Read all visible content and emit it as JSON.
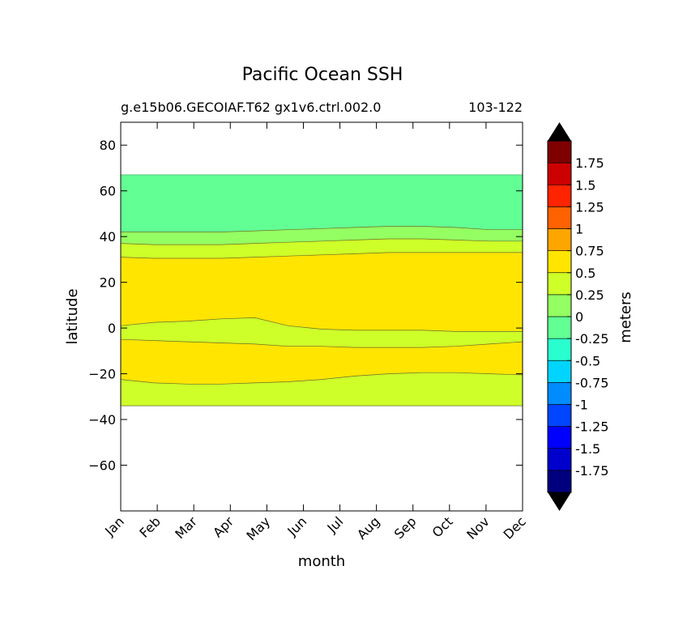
{
  "chart_data": {
    "type": "heatmap",
    "title": "Pacific Ocean SSH",
    "subtitle_left": "g.e15b06.GECOIAF.T62 gx1v6.ctrl.002.0",
    "subtitle_right": "103-122",
    "xlabel": "month",
    "ylabel": "latitude",
    "colorbar_label": "meters",
    "x_categories": [
      "Jan",
      "Feb",
      "Mar",
      "Apr",
      "May",
      "Jun",
      "Jul",
      "Aug",
      "Sep",
      "Oct",
      "Nov",
      "Dec"
    ],
    "ylim": [
      -80,
      90
    ],
    "y_ticks": [
      80,
      60,
      40,
      20,
      0,
      -20,
      -40,
      -60
    ],
    "y_tick_labels": [
      "80",
      "60",
      "40",
      "20",
      "0",
      "−20",
      "−40",
      "−60"
    ],
    "valid_lat_range": [
      -34,
      67
    ],
    "levels": [
      -2,
      -1.75,
      -1.5,
      -1.25,
      -1,
      -0.75,
      -0.5,
      -0.25,
      0,
      0.25,
      0.5,
      0.75,
      1,
      1.25,
      1.5,
      1.75,
      2
    ],
    "colorbar_tick_labels": [
      "1.75",
      "1.5",
      "1.25",
      "1",
      "0.75",
      "0.5",
      "0.25",
      "0",
      "-0.25",
      "-0.5",
      "-0.75",
      "-1",
      "-1.25",
      "-1.5",
      "-1.75"
    ],
    "colorbar_ticks": [
      1.75,
      1.5,
      1.25,
      1,
      0.75,
      0.5,
      0.25,
      0,
      -0.25,
      -0.5,
      -0.75,
      -1,
      -1.25,
      -1.5,
      -1.75
    ],
    "level_colors": [
      "#00007f",
      "#0000cd",
      "#0000ff",
      "#0046ff",
      "#008cff",
      "#00d4ff",
      "#29ffce",
      "#62ff94",
      "#94ff62",
      "#ceff29",
      "#ffe500",
      "#ffa500",
      "#ff6200",
      "#ff2400",
      "#cd0000",
      "#7f0000"
    ],
    "extend_low_color": "#000000",
    "extend_high_color": "#000000",
    "bands": [
      {
        "level_range": [
          -0.25,
          0
        ],
        "color": "#62ff94",
        "lower": [
          42,
          42,
          42,
          42,
          42.5,
          43,
          43.5,
          44,
          44.5,
          44.5,
          44,
          43,
          43
        ],
        "upper": [
          67,
          67,
          67,
          67,
          67,
          67,
          67,
          67,
          67,
          67,
          67,
          67,
          67
        ]
      },
      {
        "level_range": [
          0,
          0.25
        ],
        "color": "#94ff62",
        "lower": [
          37,
          36.5,
          36.5,
          36.5,
          37,
          37.5,
          38,
          38.5,
          39,
          39,
          38.5,
          38,
          38
        ],
        "upper": [
          42,
          42,
          42,
          42,
          42.5,
          43,
          43.5,
          44,
          44.5,
          44.5,
          44,
          43,
          43
        ]
      },
      {
        "level_range": [
          0.25,
          0.5
        ],
        "color": "#ceff29",
        "lower": [
          31,
          30.5,
          30.5,
          30.5,
          31,
          31.5,
          32,
          32.5,
          33,
          33,
          33,
          33,
          33
        ],
        "upper": [
          37,
          36.5,
          36.5,
          36.5,
          37,
          37.5,
          38,
          38.5,
          39,
          39,
          38.5,
          38,
          38
        ]
      },
      {
        "level_range": [
          0.5,
          0.75
        ],
        "color": "#ffe500",
        "lower": [
          1,
          2.5,
          3,
          4,
          4.5,
          1,
          -0.5,
          -1,
          -1,
          -1,
          -1.5,
          -1.5,
          -1.5
        ],
        "upper": [
          31,
          30.5,
          30.5,
          30.5,
          31,
          31.5,
          32,
          32.5,
          33,
          33,
          33,
          33,
          33
        ]
      },
      {
        "level_range": [
          0.25,
          0.5
        ],
        "color": "#ceff29",
        "lower": [
          -5,
          -5.5,
          -6,
          -6.5,
          -7,
          -8,
          -8,
          -8.5,
          -8.5,
          -8.5,
          -8,
          -7,
          -6
        ],
        "upper": [
          1,
          2.5,
          3,
          4,
          4.5,
          1,
          -0.5,
          -1,
          -1,
          -1,
          -1.5,
          -1.5,
          -1.5
        ]
      },
      {
        "level_range": [
          0.5,
          0.75
        ],
        "color": "#ffe500",
        "lower": [
          -22.5,
          -24,
          -24.5,
          -24.5,
          -24,
          -23.5,
          -22.5,
          -21,
          -20,
          -19.5,
          -19.5,
          -20,
          -20.5
        ],
        "upper": [
          -5,
          -5.5,
          -6,
          -6.5,
          -7,
          -8,
          -8,
          -8.5,
          -8.5,
          -8.5,
          -8,
          -7,
          -6
        ]
      },
      {
        "level_range": [
          0.25,
          0.5
        ],
        "color": "#ceff29",
        "lower": [
          -34,
          -34,
          -34,
          -34,
          -34,
          -34,
          -34,
          -34,
          -34,
          -34,
          -34,
          -34,
          -34
        ],
        "upper": [
          -22.5,
          -24,
          -24.5,
          -24.5,
          -24,
          -23.5,
          -22.5,
          -21,
          -20,
          -19.5,
          -19.5,
          -20,
          -20.5
        ]
      }
    ]
  }
}
